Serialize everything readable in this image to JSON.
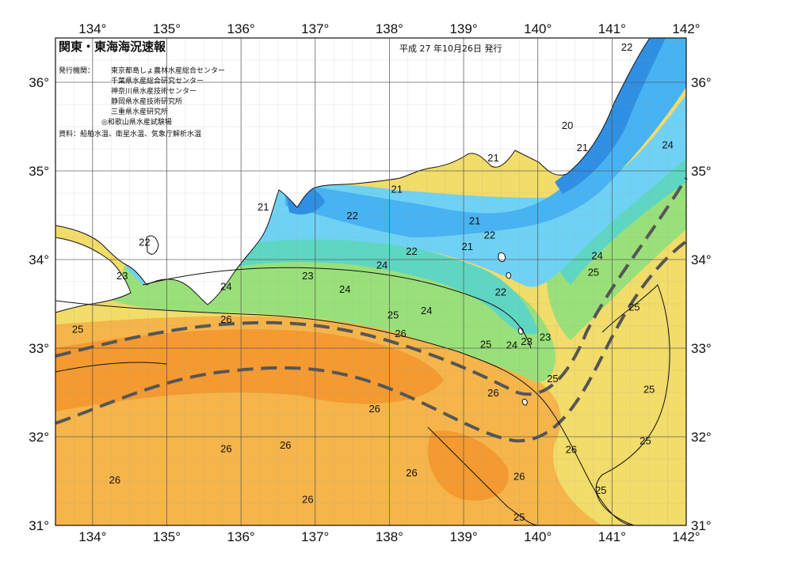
{
  "header": {
    "title": "関東・東海海況速報",
    "issue_date": "平成 27 年10月26日 発行",
    "institutions_label": "発行機関：",
    "institutions": [
      "東京都島しょ農林水産総合センター",
      "千葉県水産総合研究センター",
      "神奈川県水産技術センター",
      "静岡県水産技術研究所",
      "三重県水産研究所",
      "◎和歌山県水産試験場"
    ],
    "sources": "資料：船舶水温、衛星水温、気象庁解析水温"
  },
  "axes": {
    "lon_labels": [
      "134°",
      "135°",
      "136°",
      "137°",
      "138°",
      "139°",
      "140°",
      "141°",
      "142°"
    ],
    "lat_labels": [
      "31°",
      "32°",
      "33°",
      "34°",
      "35°",
      "36°"
    ],
    "lon_range": [
      133.5,
      142
    ],
    "lat_range": [
      31,
      36.5
    ],
    "grid": true
  },
  "contour_labels": [
    {
      "text": "22",
      "lon": 141.2,
      "lat": 36.4
    },
    {
      "text": "20",
      "lon": 140.4,
      "lat": 35.52
    },
    {
      "text": "21",
      "lon": 140.6,
      "lat": 35.27
    },
    {
      "text": "24",
      "lon": 141.75,
      "lat": 35.3
    },
    {
      "text": "21",
      "lon": 139.4,
      "lat": 35.15
    },
    {
      "text": "21",
      "lon": 138.1,
      "lat": 34.8
    },
    {
      "text": "21",
      "lon": 136.3,
      "lat": 34.6
    },
    {
      "text": "22",
      "lon": 137.5,
      "lat": 34.5
    },
    {
      "text": "21",
      "lon": 139.15,
      "lat": 34.44
    },
    {
      "text": "22",
      "lon": 139.35,
      "lat": 34.28
    },
    {
      "text": "21",
      "lon": 139.05,
      "lat": 34.15
    },
    {
      "text": "22",
      "lon": 138.3,
      "lat": 34.1
    },
    {
      "text": "22",
      "lon": 134.7,
      "lat": 34.2
    },
    {
      "text": "24",
      "lon": 137.9,
      "lat": 33.94
    },
    {
      "text": "24",
      "lon": 140.8,
      "lat": 34.05
    },
    {
      "text": "25",
      "lon": 140.75,
      "lat": 33.86
    },
    {
      "text": "23",
      "lon": 134.4,
      "lat": 33.82
    },
    {
      "text": "23",
      "lon": 136.9,
      "lat": 33.82
    },
    {
      "text": "24",
      "lon": 135.8,
      "lat": 33.7
    },
    {
      "text": "24",
      "lon": 137.4,
      "lat": 33.67
    },
    {
      "text": "22",
      "lon": 139.5,
      "lat": 33.64
    },
    {
      "text": "24",
      "lon": 138.5,
      "lat": 33.43
    },
    {
      "text": "25",
      "lon": 141.3,
      "lat": 33.47
    },
    {
      "text": "25",
      "lon": 138.05,
      "lat": 33.38
    },
    {
      "text": "26",
      "lon": 135.8,
      "lat": 33.33
    },
    {
      "text": "25",
      "lon": 133.8,
      "lat": 33.22
    },
    {
      "text": "26",
      "lon": 138.15,
      "lat": 33.17
    },
    {
      "text": "23",
      "lon": 140.1,
      "lat": 33.13
    },
    {
      "text": "23",
      "lon": 139.85,
      "lat": 33.08
    },
    {
      "text": "25",
      "lon": 139.3,
      "lat": 33.05
    },
    {
      "text": "24",
      "lon": 139.65,
      "lat": 33.04
    },
    {
      "text": "25",
      "lon": 140.2,
      "lat": 32.66
    },
    {
      "text": "25",
      "lon": 141.5,
      "lat": 32.54
    },
    {
      "text": "26",
      "lon": 139.4,
      "lat": 32.5
    },
    {
      "text": "26",
      "lon": 137.8,
      "lat": 32.32
    },
    {
      "text": "25",
      "lon": 141.45,
      "lat": 31.96
    },
    {
      "text": "26",
      "lon": 136.6,
      "lat": 31.91
    },
    {
      "text": "26",
      "lon": 135.8,
      "lat": 31.87
    },
    {
      "text": "26",
      "lon": 140.45,
      "lat": 31.86
    },
    {
      "text": "26",
      "lon": 138.3,
      "lat": 31.6
    },
    {
      "text": "26",
      "lon": 139.75,
      "lat": 31.56
    },
    {
      "text": "26",
      "lon": 134.3,
      "lat": 31.52
    },
    {
      "text": "25",
      "lon": 140.85,
      "lat": 31.4
    },
    {
      "text": "26",
      "lon": 136.9,
      "lat": 31.3
    },
    {
      "text": "25",
      "lon": 139.75,
      "lat": 31.1
    }
  ],
  "colors": {
    "temp_20": "#2f8fe3",
    "temp_21": "#47b3f2",
    "temp_22": "#6fd2f5",
    "temp_23": "#5fd6c2",
    "temp_24": "#9ae07a",
    "temp_25": "#f2dc6a",
    "temp_26": "#f5b54a",
    "temp_27": "#f49a30",
    "land": "#ffffff",
    "coast": "#111111",
    "grid": "#888888",
    "kuroshio_axis": "#555555"
  }
}
